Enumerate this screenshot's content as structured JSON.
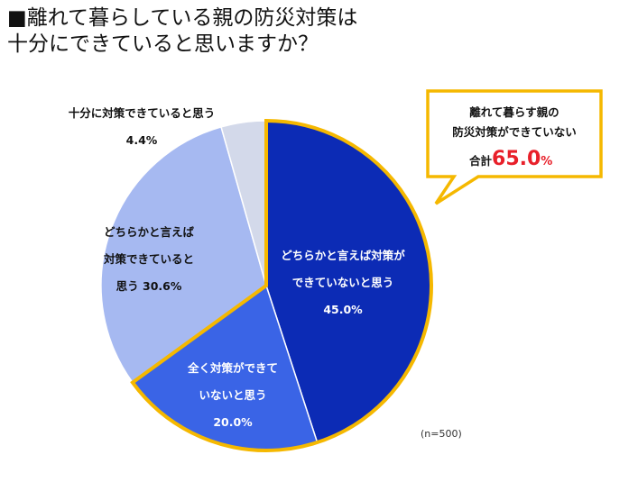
{
  "title": {
    "line1": "■離れて暮らしている親の防災対策は",
    "line2": "十分にできていると思いますか？"
  },
  "chart_data": {
    "type": "pie",
    "slices": [
      {
        "label_lines": [
          "どちらかと言えば対策が",
          "できていないと思う"
        ],
        "value_text": "45.0%",
        "value": 45.0,
        "color": "#0c2bb5"
      },
      {
        "label_lines": [
          "全く対策ができて",
          "いないと思う"
        ],
        "value_text": "20.0%",
        "value": 20.0,
        "color": "#3a64e6"
      },
      {
        "label_lines": [
          "どちらかと言えば",
          "対策できていると",
          "思う 30.6%"
        ],
        "value_text": "",
        "value": 30.6,
        "color": "#a6b9f1"
      },
      {
        "label_lines": [
          "十分に対策できていると思う"
        ],
        "value_text": "4.4%",
        "value": 4.4,
        "color": "#d3d9ea"
      }
    ],
    "highlight_color": "#f5b800"
  },
  "callout": {
    "line1": "離れて暮らす親の",
    "line2": "防災対策ができていない",
    "total_prefix": "合計",
    "total_value": "65.0",
    "total_unit": "%",
    "accent": "#e8202a"
  },
  "note": "(n=500)"
}
